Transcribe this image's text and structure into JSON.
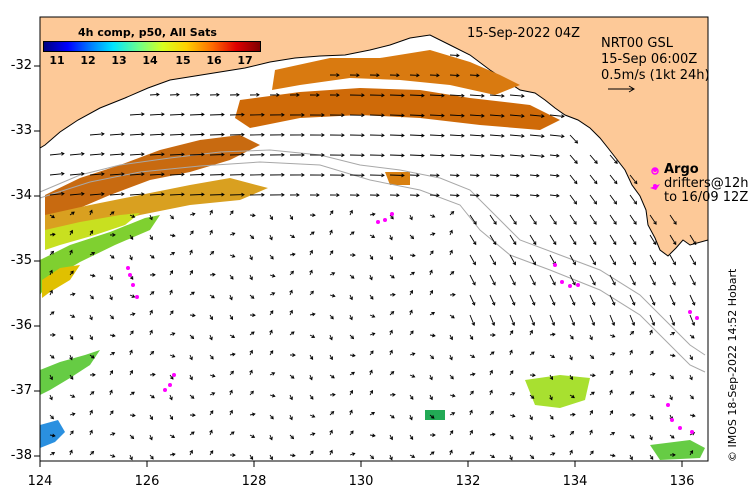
{
  "map": {
    "title_date": "15-Sep-2022 04Z",
    "product": "4h comp, p50, All Sats",
    "colorbar_ticks": [
      "11",
      "12",
      "13",
      "14",
      "15",
      "16",
      "17"
    ],
    "colorbar_range": [
      10.5,
      17.5
    ],
    "lat_ticks": [
      "-32",
      "-33",
      "-34",
      "-35",
      "-36",
      "-37",
      "-38"
    ],
    "lon_ticks": [
      "124",
      "126",
      "128",
      "130",
      "132",
      "134",
      "136"
    ],
    "lon_range": [
      124,
      136.5
    ],
    "lat_range": [
      -38.1,
      -31.3
    ],
    "current_info": {
      "model": "NRT00 GSL",
      "valid": "15-Sep 06:00Z",
      "scale": "0.5m/s (1kt 24h)"
    },
    "legend": {
      "argo": "Argo",
      "drifters_1": "drifters@12h",
      "drifters_2": "to 16/09 12Z"
    },
    "credit": "© IMOS 18-Sep-2022 14:52 Hobart",
    "colors": {
      "land": "#fdc998",
      "argo": "#ff00ff",
      "bathymetry": "#a8a8a8"
    }
  }
}
